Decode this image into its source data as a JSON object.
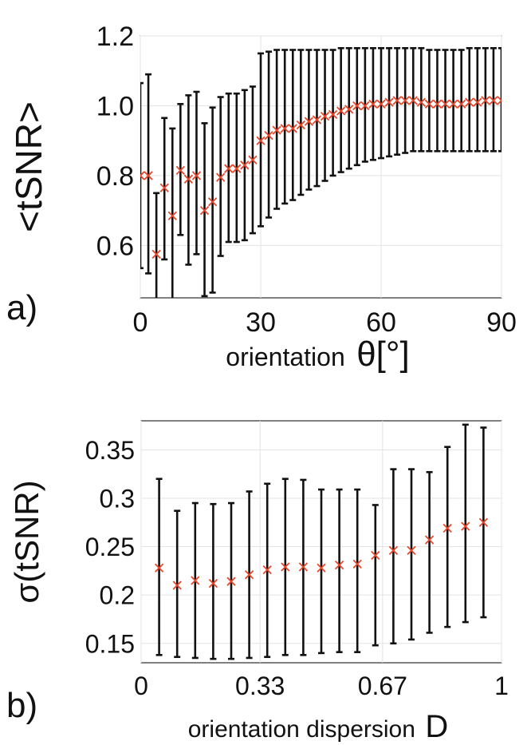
{
  "chart_data": [
    {
      "type": "scatter",
      "panel_label": "a)",
      "xlabel_text": "orientation",
      "xlabel_symbol": "θ[°]",
      "ylabel": "<tSNR>",
      "xlim": [
        0,
        90
      ],
      "ylim": [
        0.45,
        1.2
      ],
      "xticks": [
        0,
        30,
        60,
        90
      ],
      "xtick_labels": [
        "0",
        "30",
        "60",
        "90"
      ],
      "yticks": [
        0.6,
        0.8,
        1.0,
        1.2
      ],
      "ytick_labels": [
        "0.6",
        "0.8",
        "1.0",
        "1.2"
      ],
      "grid": true,
      "marker": "x",
      "marker_color": "#e8462a",
      "errorbar_color": "#111111",
      "x": [
        0,
        2,
        4,
        6,
        8,
        10,
        12,
        14,
        16,
        18,
        20,
        22,
        24,
        26,
        28,
        30,
        32,
        34,
        36,
        38,
        40,
        42,
        44,
        46,
        48,
        50,
        52,
        54,
        56,
        58,
        60,
        62,
        64,
        66,
        68,
        70,
        72,
        74,
        76,
        78,
        80,
        82,
        84,
        86,
        88,
        90
      ],
      "y": [
        0.8,
        0.8,
        0.575,
        0.765,
        0.685,
        0.815,
        0.79,
        0.8,
        0.7,
        0.725,
        0.795,
        0.82,
        0.82,
        0.83,
        0.845,
        0.9,
        0.915,
        0.93,
        0.935,
        0.935,
        0.945,
        0.955,
        0.96,
        0.97,
        0.975,
        0.985,
        0.99,
        1.0,
        1.0,
        1.005,
        1.005,
        1.01,
        1.015,
        1.015,
        1.015,
        1.01,
        1.005,
        1.005,
        1.005,
        1.005,
        1.005,
        1.01,
        1.01,
        1.015,
        1.015,
        1.015
      ],
      "err_low": [
        0.535,
        0.52,
        0.44,
        0.56,
        0.445,
        0.63,
        0.545,
        0.575,
        0.455,
        0.465,
        0.57,
        0.61,
        0.61,
        0.615,
        0.635,
        0.655,
        0.68,
        0.705,
        0.72,
        0.73,
        0.745,
        0.76,
        0.77,
        0.785,
        0.8,
        0.81,
        0.82,
        0.83,
        0.84,
        0.845,
        0.85,
        0.855,
        0.86,
        0.865,
        0.87,
        0.87,
        0.87,
        0.87,
        0.87,
        0.87,
        0.87,
        0.87,
        0.87,
        0.87,
        0.87,
        0.87
      ],
      "err_high": [
        1.065,
        1.09,
        0.75,
        0.965,
        0.935,
        1.005,
        1.03,
        1.04,
        0.95,
        0.995,
        1.025,
        1.035,
        1.035,
        1.045,
        1.055,
        1.15,
        1.155,
        1.16,
        1.16,
        1.16,
        1.16,
        1.16,
        1.16,
        1.16,
        1.16,
        1.165,
        1.165,
        1.165,
        1.165,
        1.165,
        1.165,
        1.165,
        1.165,
        1.165,
        1.165,
        1.165,
        1.16,
        1.16,
        1.16,
        1.16,
        1.16,
        1.165,
        1.165,
        1.165,
        1.165,
        1.165
      ]
    },
    {
      "type": "scatter",
      "panel_label": "b)",
      "xlabel_text": "orientation dispersion",
      "xlabel_symbol": "D",
      "ylabel": "σ(tSNR)",
      "xlim": [
        0,
        1
      ],
      "ylim": [
        0.13,
        0.38
      ],
      "xticks": [
        0,
        0.33,
        0.67,
        1
      ],
      "xtick_labels": [
        "0",
        "0.33",
        "0.67",
        "1"
      ],
      "yticks": [
        0.15,
        0.2,
        0.25,
        0.3,
        0.35
      ],
      "ytick_labels": [
        "0.15",
        "0.2",
        "0.25",
        "0.3",
        "0.35"
      ],
      "grid": true,
      "marker": "x",
      "marker_color": "#e8462a",
      "errorbar_color": "#111111",
      "x": [
        0.05,
        0.1,
        0.15,
        0.2,
        0.25,
        0.3,
        0.35,
        0.4,
        0.45,
        0.5,
        0.55,
        0.6,
        0.65,
        0.7,
        0.75,
        0.8,
        0.85,
        0.9,
        0.95
      ],
      "y": [
        0.228,
        0.21,
        0.215,
        0.212,
        0.214,
        0.221,
        0.226,
        0.229,
        0.229,
        0.228,
        0.231,
        0.232,
        0.241,
        0.246,
        0.246,
        0.257,
        0.269,
        0.271,
        0.275
      ],
      "err_low": [
        0.138,
        0.136,
        0.135,
        0.134,
        0.134,
        0.135,
        0.136,
        0.138,
        0.138,
        0.14,
        0.141,
        0.141,
        0.148,
        0.15,
        0.154,
        0.161,
        0.167,
        0.172,
        0.177
      ],
      "err_high": [
        0.32,
        0.287,
        0.295,
        0.294,
        0.295,
        0.307,
        0.315,
        0.32,
        0.319,
        0.309,
        0.309,
        0.309,
        0.293,
        0.33,
        0.33,
        0.327,
        0.353,
        0.376,
        0.373
      ]
    }
  ]
}
